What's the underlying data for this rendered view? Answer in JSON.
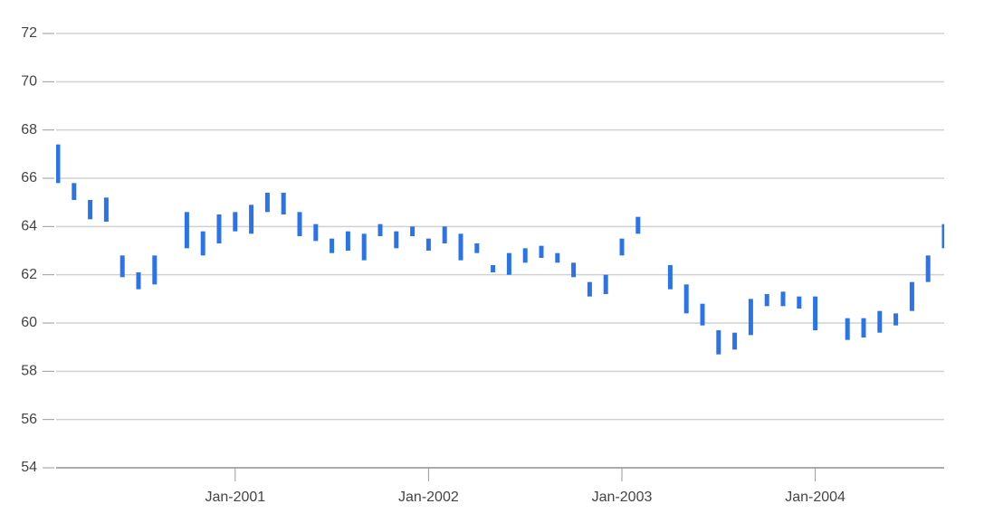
{
  "chart_data": {
    "type": "range-bar",
    "x": [
      "2000-02",
      "2000-03",
      "2000-04",
      "2000-05",
      "2000-06",
      "2000-07",
      "2000-08",
      "2000-10",
      "2000-11",
      "2000-12",
      "2001-01",
      "2001-02",
      "2001-03",
      "2001-04",
      "2001-05",
      "2001-06",
      "2001-07",
      "2001-08",
      "2001-09",
      "2001-10",
      "2001-11",
      "2001-12",
      "2002-01",
      "2002-02",
      "2002-03",
      "2002-04",
      "2002-05",
      "2002-06",
      "2002-07",
      "2002-08",
      "2002-09",
      "2002-10",
      "2002-11",
      "2002-12",
      "2003-01",
      "2003-02",
      "2003-04",
      "2003-05",
      "2003-06",
      "2003-07",
      "2003-08",
      "2003-09",
      "2003-10",
      "2003-11",
      "2003-12",
      "2004-01",
      "2004-03",
      "2004-04",
      "2004-05",
      "2004-06",
      "2004-07",
      "2004-08",
      "2004-09"
    ],
    "high": [
      67.4,
      65.8,
      65.1,
      65.2,
      62.8,
      62.1,
      62.8,
      64.6,
      63.8,
      64.5,
      64.6,
      64.9,
      65.4,
      65.4,
      64.6,
      64.1,
      63.5,
      63.8,
      63.7,
      64.1,
      63.8,
      64.0,
      63.5,
      64.0,
      63.7,
      63.3,
      62.4,
      62.9,
      63.1,
      63.2,
      62.9,
      62.5,
      61.7,
      62.0,
      63.5,
      64.4,
      62.4,
      61.6,
      60.8,
      59.7,
      59.6,
      61.0,
      61.2,
      61.3,
      61.1,
      61.1,
      60.2,
      60.2,
      60.5,
      60.4,
      61.7,
      62.8,
      64.1
    ],
    "low": [
      65.8,
      65.1,
      64.3,
      64.2,
      61.9,
      61.4,
      61.6,
      63.1,
      62.8,
      63.3,
      63.8,
      63.7,
      64.6,
      64.5,
      63.6,
      63.4,
      62.9,
      63.0,
      62.6,
      63.6,
      63.1,
      63.6,
      63.0,
      63.3,
      62.6,
      62.9,
      62.1,
      62.0,
      62.5,
      62.7,
      62.5,
      61.9,
      61.1,
      61.2,
      62.8,
      63.7,
      61.4,
      60.4,
      59.9,
      58.7,
      58.9,
      59.5,
      60.7,
      60.7,
      60.6,
      59.7,
      59.3,
      59.4,
      59.6,
      59.9,
      60.5,
      61.7,
      63.1
    ],
    "color": "#2a73e8",
    "xlim": [
      "2000-02",
      "2004-09"
    ],
    "xticks": [
      {
        "value": "2001-01",
        "label": "Jan-2001"
      },
      {
        "value": "2002-01",
        "label": "Jan-2002"
      },
      {
        "value": "2003-01",
        "label": "Jan-2003"
      },
      {
        "value": "2004-01",
        "label": "Jan-2004"
      }
    ],
    "ylim": [
      54,
      72
    ],
    "yticks": [
      54,
      56,
      58,
      60,
      62,
      64,
      66,
      68,
      70,
      72
    ],
    "grid": true
  }
}
